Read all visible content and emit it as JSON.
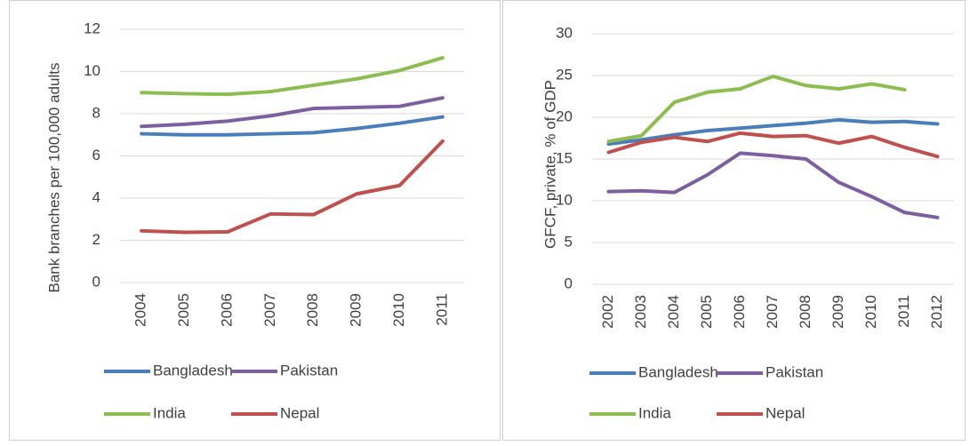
{
  "chart_data": [
    {
      "type": "line",
      "y_label": "Bank branches per 100,000 adults",
      "categories": [
        "2004",
        "2005",
        "2006",
        "2007",
        "2008",
        "2009",
        "2010",
        "2011"
      ],
      "ylim": [
        0,
        12
      ],
      "yticks": [
        0,
        2,
        4,
        6,
        8,
        10,
        12
      ],
      "grid": true,
      "series": [
        {
          "name": "Bangladesh",
          "color": "#4a7ebb",
          "values": [
            7.05,
            7.0,
            7.0,
            7.05,
            7.1,
            7.3,
            7.55,
            7.85
          ]
        },
        {
          "name": "Pakistan",
          "color": "#7d5fa0",
          "values": [
            7.4,
            7.5,
            7.65,
            7.9,
            8.25,
            8.3,
            8.35,
            8.75
          ]
        },
        {
          "name": "India",
          "color": "#8cbd4f",
          "values": [
            9.0,
            8.95,
            8.92,
            9.05,
            9.35,
            9.65,
            10.05,
            10.65
          ]
        },
        {
          "name": "Nepal",
          "color": "#c0504d",
          "values": [
            2.45,
            2.38,
            2.4,
            3.25,
            3.22,
            4.2,
            4.6,
            6.7
          ]
        }
      ]
    },
    {
      "type": "line",
      "y_label": "GFCF, private, % of GDP",
      "categories": [
        "2002",
        "2003",
        "2004",
        "2005",
        "2006",
        "2007",
        "2008",
        "2009",
        "2010",
        "2011",
        "2012"
      ],
      "ylim": [
        0,
        30
      ],
      "yticks": [
        0,
        5,
        10,
        15,
        20,
        25,
        30
      ],
      "grid": true,
      "series": [
        {
          "name": "Bangladesh",
          "color": "#4a7ebb",
          "values": [
            16.8,
            17.3,
            17.9,
            18.4,
            18.7,
            19.0,
            19.3,
            19.7,
            19.4,
            19.5,
            19.2
          ]
        },
        {
          "name": "Pakistan",
          "color": "#7d5fa0",
          "values": [
            11.1,
            11.2,
            11.0,
            13.1,
            15.7,
            15.4,
            15.0,
            12.2,
            10.5,
            8.6,
            8.0
          ]
        },
        {
          "name": "India",
          "color": "#8cbd4f",
          "values": [
            17.1,
            17.8,
            21.8,
            23.0,
            23.4,
            24.9,
            23.8,
            23.4,
            24.0,
            23.3,
            null
          ]
        },
        {
          "name": "Nepal",
          "color": "#c0504d",
          "values": [
            15.8,
            17.0,
            17.6,
            17.1,
            18.1,
            17.7,
            17.8,
            16.9,
            17.7,
            16.4,
            15.3
          ]
        }
      ]
    }
  ]
}
